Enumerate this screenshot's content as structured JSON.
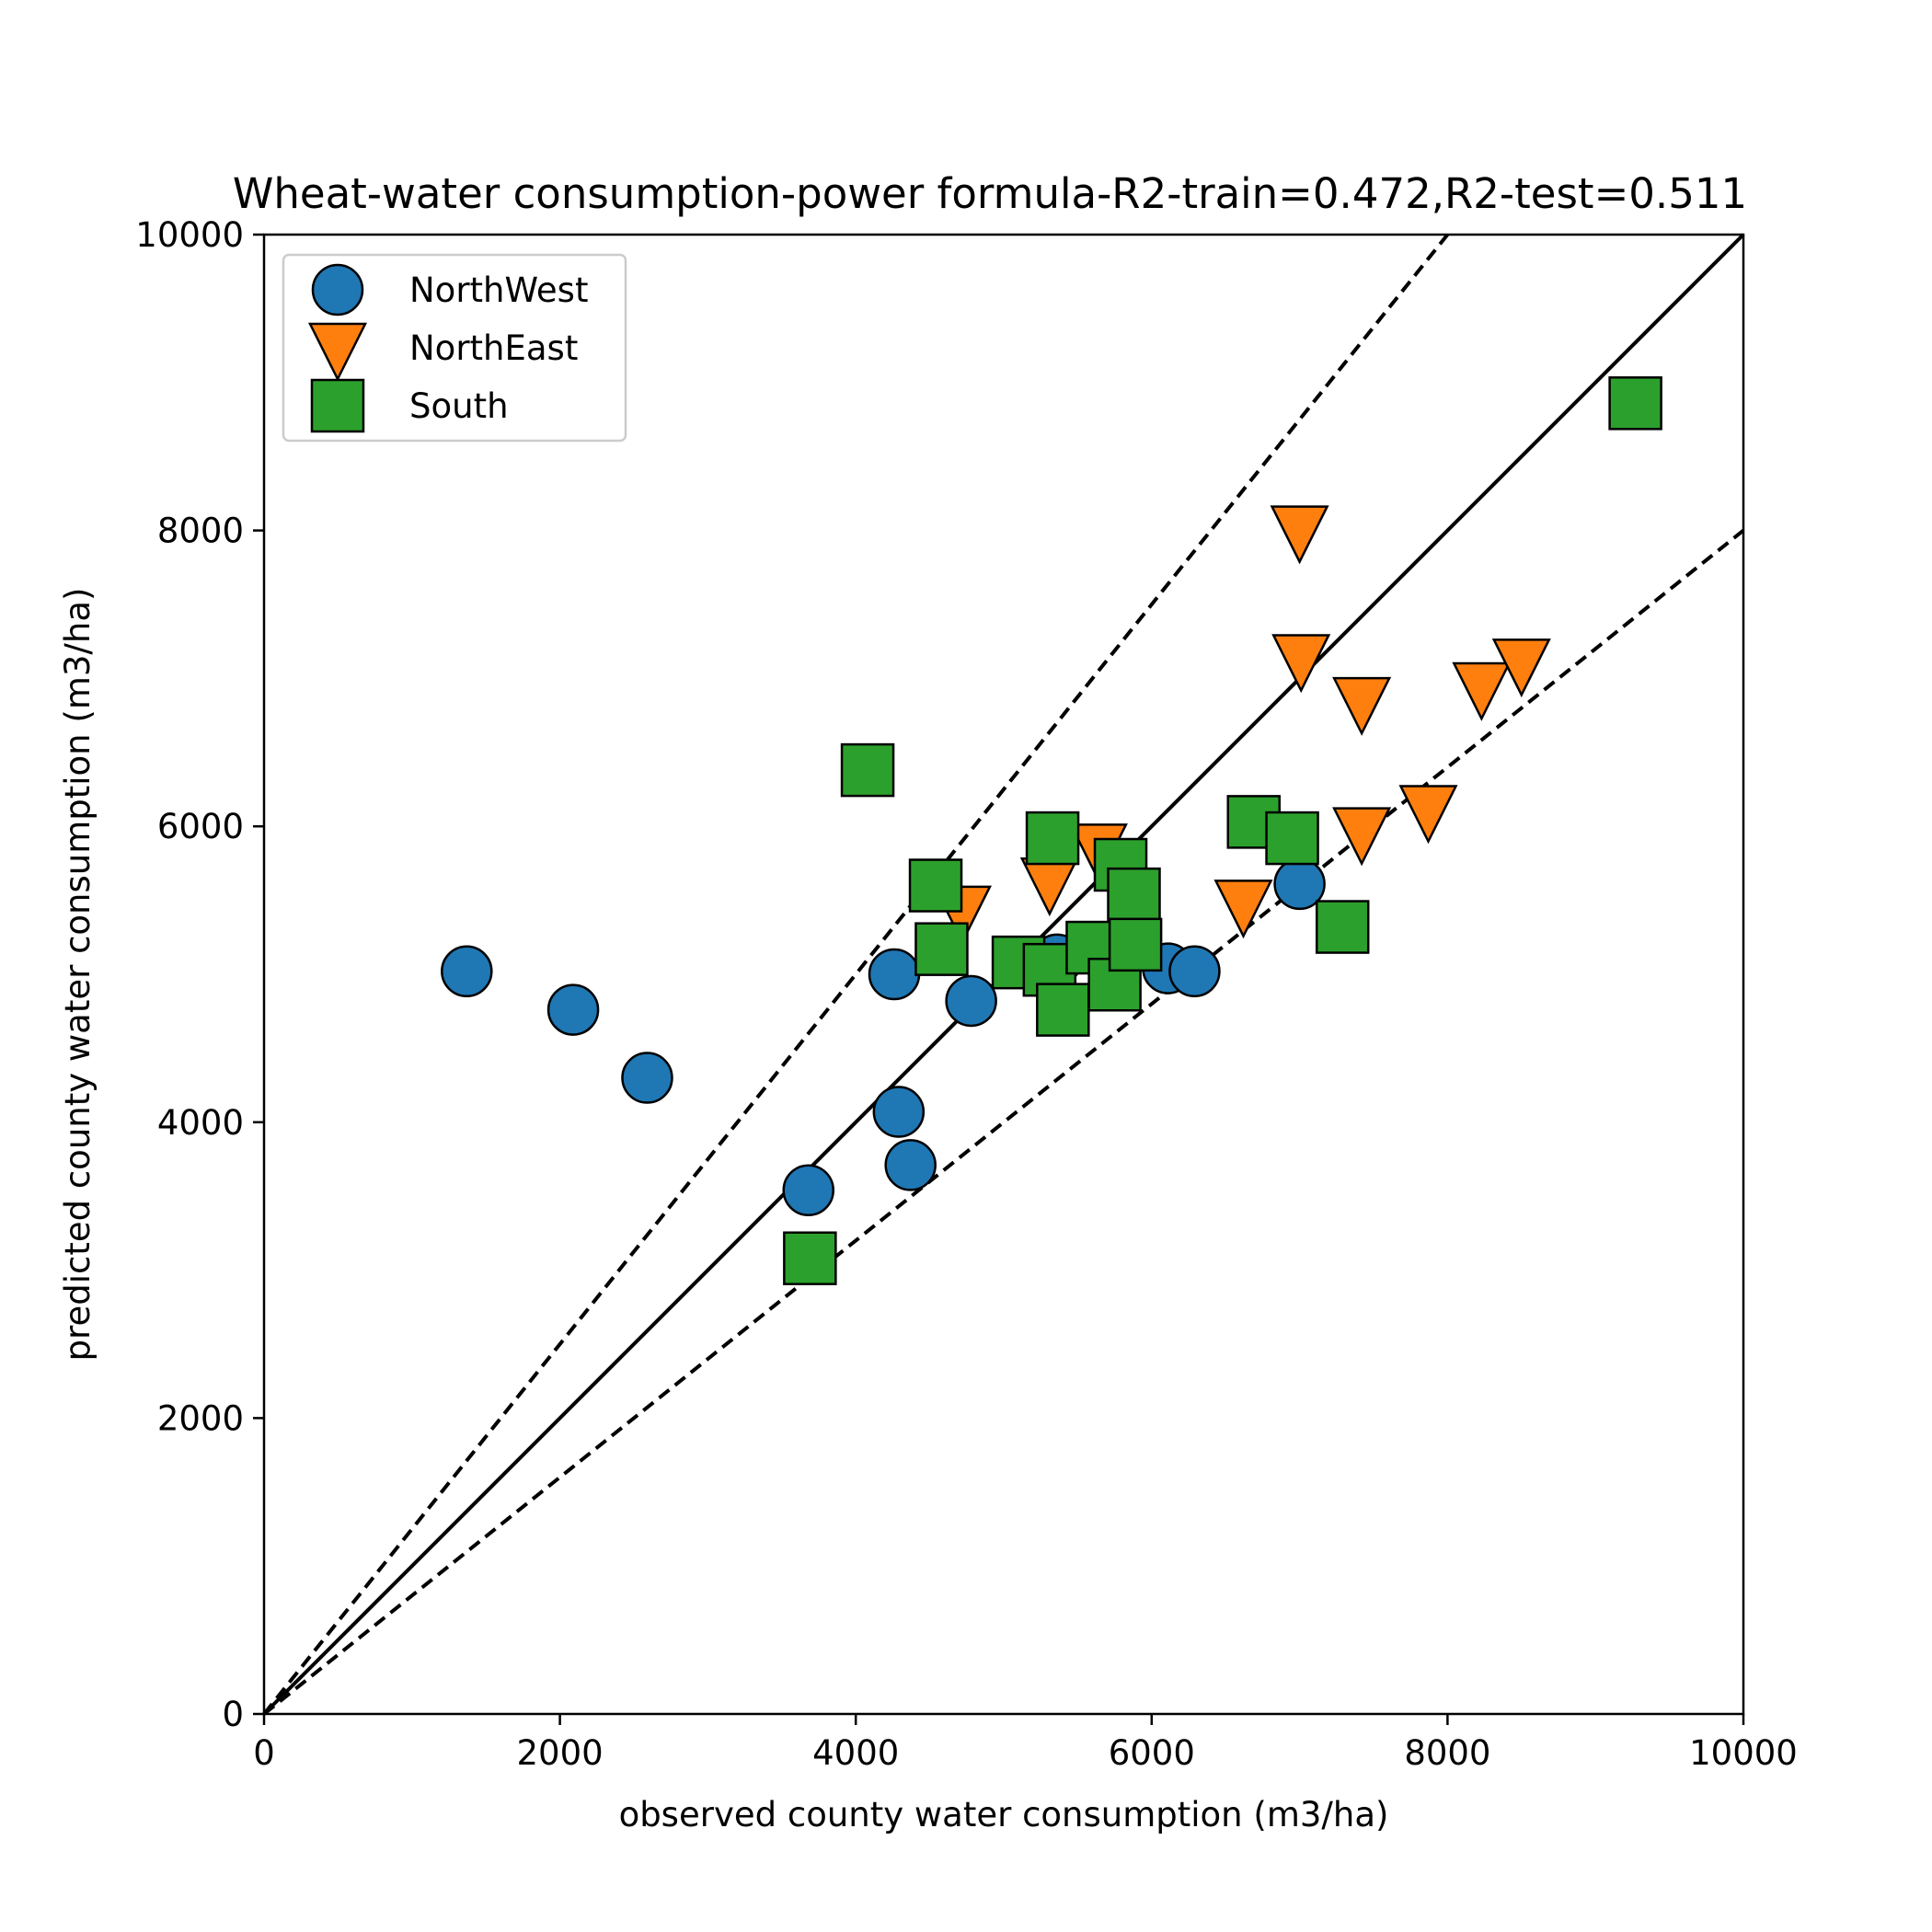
{
  "chart_data": {
    "type": "scatter",
    "title": "Wheat-water consumption-power formula-R2-train=0.472,R2-test=0.511",
    "xlabel": "observed county water consumption (m3/ha)",
    "ylabel": "predicted county water consumption (m3/ha)",
    "xlim": [
      0,
      10000
    ],
    "ylim": [
      0,
      10000
    ],
    "xticks": [
      "0",
      "2000",
      "4000",
      "6000",
      "8000",
      "10000"
    ],
    "yticks": [
      "0",
      "2000",
      "4000",
      "6000",
      "8000",
      "10000"
    ],
    "grid": false,
    "legend_position": "top-left",
    "reference_lines": [
      {
        "style": "solid",
        "slope": 1.0
      },
      {
        "style": "dashed",
        "slope": 1.25
      },
      {
        "style": "dashed",
        "slope": 0.8
      }
    ],
    "series": [
      {
        "name": "NorthWest",
        "marker": "circle",
        "color": "#1f77b4",
        "points": [
          [
            1370,
            5020
          ],
          [
            2090,
            4760
          ],
          [
            2590,
            4300
          ],
          [
            3680,
            3540
          ],
          [
            4260,
            5000
          ],
          [
            4290,
            4070
          ],
          [
            4370,
            3710
          ],
          [
            4780,
            4820
          ],
          [
            5360,
            5100
          ],
          [
            6110,
            5040
          ],
          [
            6290,
            5020
          ],
          [
            7000,
            5610
          ]
        ]
      },
      {
        "name": "NorthEast",
        "marker": "triangle-down",
        "color": "#ff7f0e",
        "points": [
          [
            4720,
            5430
          ],
          [
            5310,
            5620
          ],
          [
            5640,
            5850
          ],
          [
            6620,
            5470
          ],
          [
            7000,
            8000
          ],
          [
            7010,
            7130
          ],
          [
            7420,
            6840
          ],
          [
            7420,
            5960
          ],
          [
            7870,
            6110
          ],
          [
            8230,
            6940
          ],
          [
            8500,
            7100
          ]
        ]
      },
      {
        "name": "South",
        "marker": "square",
        "color": "#2ca02c",
        "points": [
          [
            3690,
            3080
          ],
          [
            4080,
            6380
          ],
          [
            4540,
            5600
          ],
          [
            4580,
            5170
          ],
          [
            5100,
            5080
          ],
          [
            5310,
            5030
          ],
          [
            5330,
            5920
          ],
          [
            5400,
            4760
          ],
          [
            5600,
            5180
          ],
          [
            5750,
            4930
          ],
          [
            5790,
            5740
          ],
          [
            5880,
            5540
          ],
          [
            5890,
            5200
          ],
          [
            6690,
            6030
          ],
          [
            6950,
            5920
          ],
          [
            7290,
            5320
          ],
          [
            9270,
            8860
          ]
        ]
      }
    ]
  }
}
